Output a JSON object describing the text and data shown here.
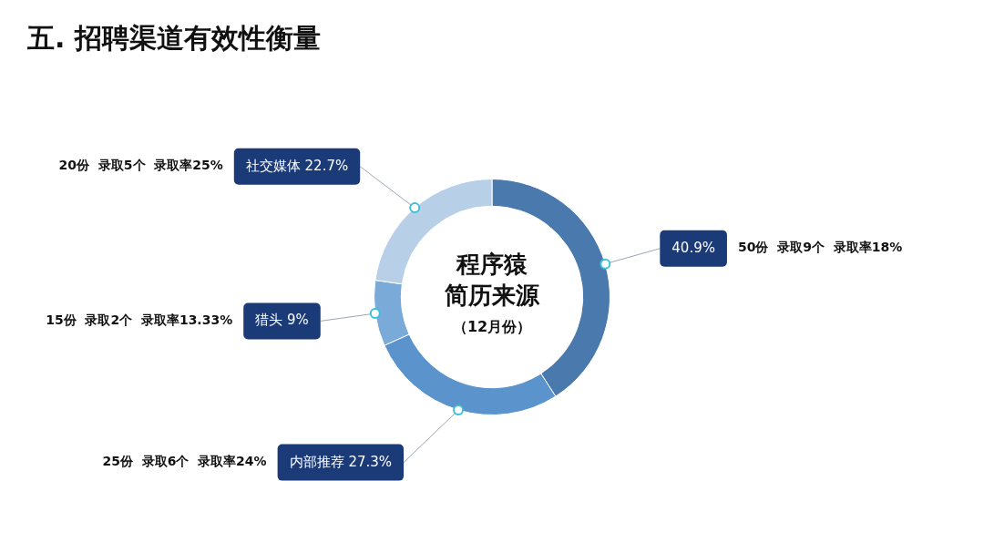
{
  "chart_data": {
    "type": "donut",
    "title": "五. 招聘渠道有效性衡量",
    "categories": [
      null,
      "内部推荐",
      "猎头",
      "社交媒体"
    ],
    "values": [
      40.9,
      27.3,
      9,
      22.7
    ],
    "colors": [
      "#4a7aad",
      "#5b93cc",
      "#7aaad8",
      "#b8cfe8"
    ],
    "value_labels": [
      "40.9%",
      "27.3%",
      "9%",
      "22.7%"
    ],
    "annotations": [
      "50份  录取9个  录取率18%",
      "25份  录取6个  录取率24%",
      "15份  录取2个  录取率13.33%",
      "20份  录取5个  录取率25%",
      "程序猿",
      "简历来源",
      "（12月份）"
    ],
    "legend": false
  }
}
